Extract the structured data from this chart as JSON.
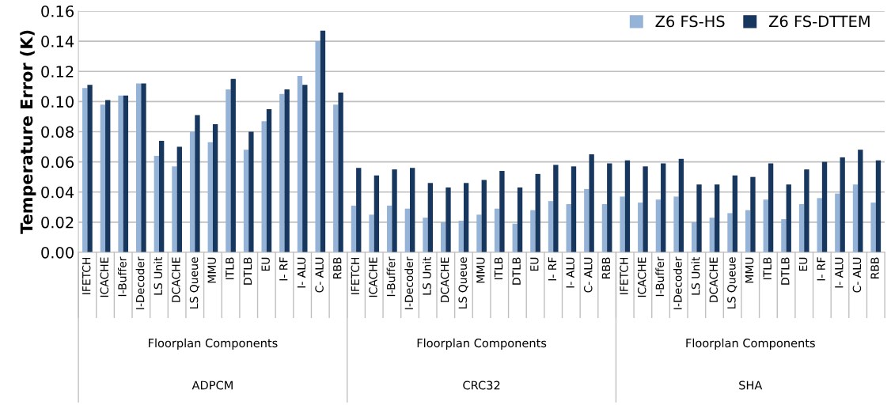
{
  "chart_data": {
    "type": "bar",
    "ylabel": "Temperature Error (K)",
    "categories": [
      "IFETCH",
      "ICACHE",
      "I-Buffer",
      "I-Decoder",
      "LS Unit",
      "DCACHE",
      "LS Queue",
      "MMU",
      "ITLB",
      "DTLB",
      "EU",
      "I- RF",
      "I- ALU",
      "C- ALU",
      "RBB",
      "IFETCH",
      "ICACHE",
      "I-Buffer",
      "I-Decoder",
      "LS Unit",
      "DCACHE",
      "LS Queue",
      "MMU",
      "ITLB",
      "DTLB",
      "EU",
      "I- RF",
      "I- ALU",
      "C- ALU",
      "RBB",
      "IFETCH",
      "ICACHE",
      "I-Buffer",
      "I-Decoder",
      "LS Unit",
      "DCACHE",
      "LS Queue",
      "MMU",
      "ITLB",
      "DTLB",
      "EU",
      "I- RF",
      "I- ALU",
      "C- ALU",
      "RBB"
    ],
    "series": [
      {
        "name": "Z6 FS-HS",
        "color": "#95b3d7",
        "values": [
          0.109,
          0.098,
          0.104,
          0.112,
          0.064,
          0.057,
          0.08,
          0.073,
          0.108,
          0.068,
          0.087,
          0.105,
          0.117,
          0.14,
          0.098,
          0.031,
          0.025,
          0.031,
          0.029,
          0.023,
          0.02,
          0.021,
          0.025,
          0.029,
          0.019,
          0.028,
          0.034,
          0.032,
          0.042,
          0.032,
          0.037,
          0.033,
          0.035,
          0.037,
          0.02,
          0.023,
          0.026,
          0.028,
          0.035,
          0.022,
          0.032,
          0.036,
          0.039,
          0.045,
          0.033
        ]
      },
      {
        "name": "Z6 FS-DTTEM",
        "color": "#17375e",
        "values": [
          0.111,
          0.101,
          0.104,
          0.112,
          0.074,
          0.07,
          0.091,
          0.085,
          0.115,
          0.08,
          0.095,
          0.108,
          0.111,
          0.147,
          0.106,
          0.056,
          0.051,
          0.055,
          0.056,
          0.046,
          0.043,
          0.046,
          0.048,
          0.054,
          0.043,
          0.052,
          0.058,
          0.057,
          0.065,
          0.059,
          0.061,
          0.057,
          0.059,
          0.062,
          0.045,
          0.045,
          0.051,
          0.05,
          0.059,
          0.045,
          0.055,
          0.06,
          0.063,
          0.068,
          0.061
        ]
      }
    ],
    "ylim": [
      0,
      0.16
    ],
    "yticks": [
      {
        "value": 0,
        "label": "0.00"
      },
      {
        "value": 0.02,
        "label": "0.02"
      },
      {
        "value": 0.04,
        "label": "0.04"
      },
      {
        "value": 0.06,
        "label": "0.06"
      },
      {
        "value": 0.08,
        "label": "0.08"
      },
      {
        "value": 0.1,
        "label": "0.10"
      },
      {
        "value": 0.12,
        "label": "0.12"
      },
      {
        "value": 0.14,
        "label": "0.14"
      },
      {
        "value": 0.16,
        "label": "0.16"
      }
    ],
    "annotations": [
      "Floorplan Components",
      "ADPCM",
      "Floorplan Components",
      "CRC32",
      "Floorplan Components",
      "SHA"
    ],
    "grid": "y",
    "legend": "top right"
  }
}
